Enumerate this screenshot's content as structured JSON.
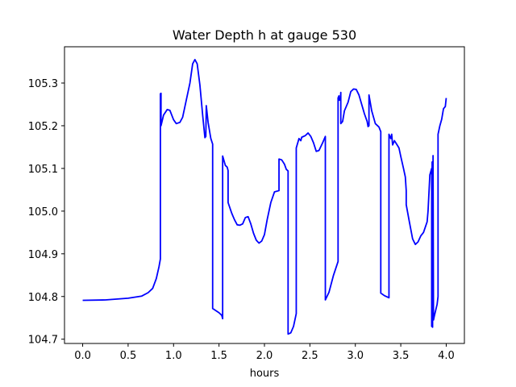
{
  "chart_data": {
    "type": "line",
    "title": "Water Depth h at gauge 530",
    "xlabel": "hours",
    "ylabel": "",
    "xlim": [
      -0.2,
      4.2
    ],
    "ylim": [
      104.69,
      105.385
    ],
    "xticks": [
      0.0,
      0.5,
      1.0,
      1.5,
      2.0,
      2.5,
      3.0,
      3.5,
      4.0
    ],
    "xtick_labels": [
      "0.0",
      "0.5",
      "1.0",
      "1.5",
      "2.0",
      "2.5",
      "3.0",
      "3.5",
      "4.0"
    ],
    "yticks": [
      104.7,
      104.8,
      104.9,
      105.0,
      105.1,
      105.2,
      105.3
    ],
    "ytick_labels": [
      "104.7",
      "104.8",
      "104.9",
      "105.0",
      "105.1",
      "105.2",
      "105.3"
    ],
    "grid": false,
    "series": [
      {
        "color": "#0000ff",
        "points": [
          [
            0.0,
            104.791
          ],
          [
            0.25,
            104.792
          ],
          [
            0.5,
            104.796
          ],
          [
            0.65,
            104.801
          ],
          [
            0.72,
            104.809
          ],
          [
            0.77,
            104.819
          ],
          [
            0.81,
            104.842
          ],
          [
            0.84,
            104.87
          ],
          [
            0.855,
            104.888
          ],
          [
            0.855,
            105.275
          ],
          [
            0.862,
            105.276
          ],
          [
            0.862,
            105.2
          ],
          [
            0.89,
            105.225
          ],
          [
            0.93,
            105.238
          ],
          [
            0.96,
            105.236
          ],
          [
            1.0,
            105.214
          ],
          [
            1.03,
            105.205
          ],
          [
            1.07,
            105.208
          ],
          [
            1.1,
            105.22
          ],
          [
            1.14,
            105.26
          ],
          [
            1.18,
            105.3
          ],
          [
            1.21,
            105.345
          ],
          [
            1.235,
            105.355
          ],
          [
            1.26,
            105.345
          ],
          [
            1.29,
            105.295
          ],
          [
            1.32,
            105.225
          ],
          [
            1.345,
            105.172
          ],
          [
            1.355,
            105.175
          ],
          [
            1.36,
            105.247
          ],
          [
            1.38,
            105.208
          ],
          [
            1.41,
            105.17
          ],
          [
            1.43,
            105.157
          ],
          [
            1.43,
            104.772
          ],
          [
            1.5,
            104.762
          ],
          [
            1.53,
            104.756
          ],
          [
            1.54,
            104.748
          ],
          [
            1.54,
            105.129
          ],
          [
            1.57,
            105.107
          ],
          [
            1.59,
            105.103
          ],
          [
            1.6,
            105.095
          ],
          [
            1.6,
            105.02
          ],
          [
            1.64,
            104.995
          ],
          [
            1.67,
            104.98
          ],
          [
            1.7,
            104.968
          ],
          [
            1.73,
            104.967
          ],
          [
            1.76,
            104.97
          ],
          [
            1.79,
            104.985
          ],
          [
            1.82,
            104.987
          ],
          [
            1.85,
            104.97
          ],
          [
            1.88,
            104.948
          ],
          [
            1.91,
            104.932
          ],
          [
            1.94,
            104.925
          ],
          [
            1.97,
            104.93
          ],
          [
            2.0,
            104.945
          ],
          [
            2.03,
            104.98
          ],
          [
            2.07,
            105.02
          ],
          [
            2.11,
            105.045
          ],
          [
            2.16,
            105.048
          ],
          [
            2.16,
            105.122
          ],
          [
            2.19,
            105.12
          ],
          [
            2.22,
            105.11
          ],
          [
            2.24,
            105.098
          ],
          [
            2.26,
            105.094
          ],
          [
            2.26,
            104.712
          ],
          [
            2.29,
            104.715
          ],
          [
            2.32,
            104.73
          ],
          [
            2.35,
            104.76
          ],
          [
            2.35,
            105.148
          ],
          [
            2.38,
            105.17
          ],
          [
            2.4,
            105.165
          ],
          [
            2.41,
            105.173
          ],
          [
            2.45,
            105.177
          ],
          [
            2.48,
            105.183
          ],
          [
            2.51,
            105.175
          ],
          [
            2.54,
            105.16
          ],
          [
            2.57,
            105.14
          ],
          [
            2.6,
            105.142
          ],
          [
            2.64,
            105.16
          ],
          [
            2.67,
            105.175
          ],
          [
            2.67,
            104.792
          ],
          [
            2.71,
            104.81
          ],
          [
            2.76,
            104.85
          ],
          [
            2.81,
            104.882
          ],
          [
            2.81,
            105.265
          ],
          [
            2.82,
            105.27
          ],
          [
            2.82,
            105.26
          ],
          [
            2.835,
            105.26
          ],
          [
            2.84,
            105.278
          ],
          [
            2.84,
            105.205
          ],
          [
            2.86,
            105.21
          ],
          [
            2.88,
            105.235
          ],
          [
            2.92,
            105.255
          ],
          [
            2.95,
            105.28
          ],
          [
            2.98,
            105.286
          ],
          [
            3.01,
            105.285
          ],
          [
            3.04,
            105.272
          ],
          [
            3.07,
            105.25
          ],
          [
            3.1,
            105.228
          ],
          [
            3.13,
            105.21
          ],
          [
            3.14,
            105.198
          ],
          [
            3.15,
            105.2
          ],
          [
            3.15,
            105.272
          ],
          [
            3.18,
            105.235
          ],
          [
            3.22,
            105.205
          ],
          [
            3.26,
            105.197
          ],
          [
            3.28,
            105.186
          ],
          [
            3.28,
            104.808
          ],
          [
            3.32,
            104.802
          ],
          [
            3.37,
            104.797
          ],
          [
            3.37,
            105.18
          ],
          [
            3.39,
            105.17
          ],
          [
            3.4,
            105.18
          ],
          [
            3.41,
            105.155
          ],
          [
            3.43,
            105.165
          ],
          [
            3.46,
            105.155
          ],
          [
            3.48,
            105.148
          ],
          [
            3.5,
            105.128
          ],
          [
            3.53,
            105.1
          ],
          [
            3.55,
            105.08
          ],
          [
            3.56,
            105.048
          ],
          [
            3.56,
            105.015
          ],
          [
            3.59,
            104.98
          ],
          [
            3.63,
            104.935
          ],
          [
            3.66,
            104.922
          ],
          [
            3.69,
            104.928
          ],
          [
            3.72,
            104.942
          ],
          [
            3.75,
            104.95
          ],
          [
            3.79,
            104.975
          ],
          [
            3.8,
            105.0
          ],
          [
            3.82,
            105.085
          ],
          [
            3.84,
            105.1
          ],
          [
            3.84,
            104.73
          ],
          [
            3.845,
            105.115
          ],
          [
            3.85,
            104.728
          ],
          [
            3.855,
            105.13
          ],
          [
            3.86,
            104.745
          ],
          [
            3.87,
            104.755
          ],
          [
            3.9,
            104.782
          ],
          [
            3.91,
            104.8
          ],
          [
            3.91,
            105.18
          ],
          [
            3.93,
            105.2
          ],
          [
            3.95,
            105.215
          ],
          [
            3.97,
            105.24
          ],
          [
            3.99,
            105.245
          ],
          [
            4.0,
            105.265
          ]
        ]
      }
    ]
  }
}
